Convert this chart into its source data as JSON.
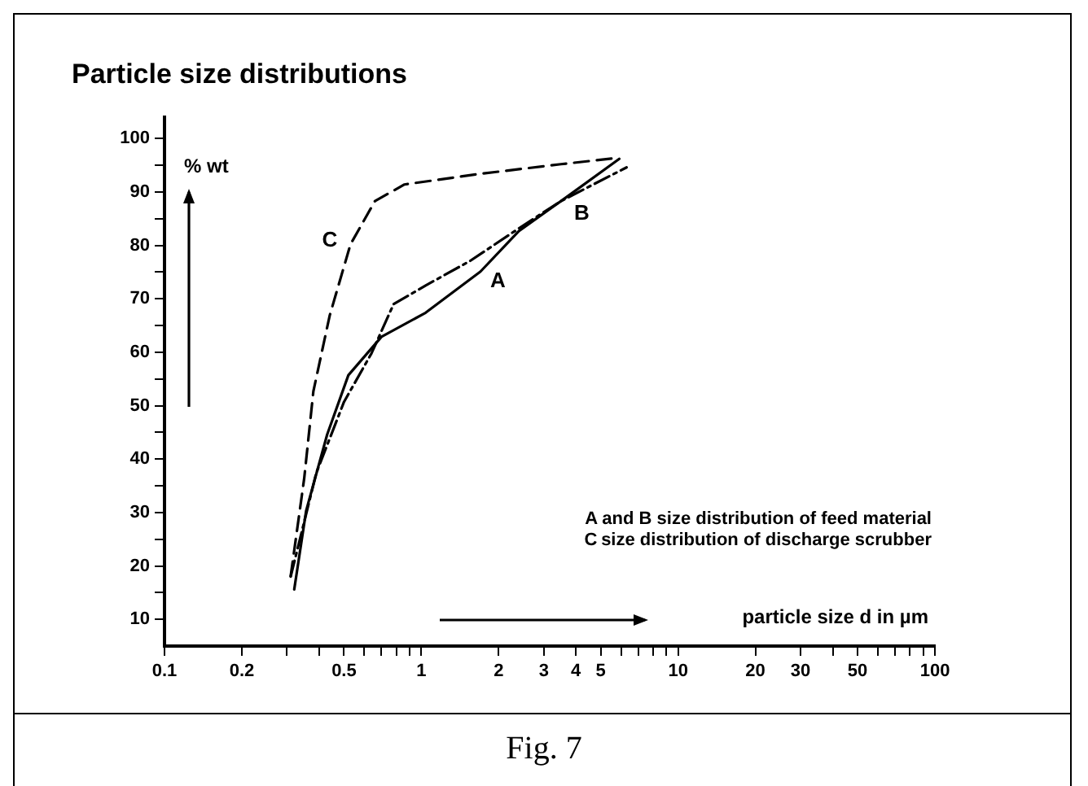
{
  "chart_data": {
    "type": "line",
    "title": "Particle size distributions",
    "xlabel": "particle size d in µm",
    "ylabel": "% wt",
    "log": "x",
    "xlim": [
      0.1,
      100
    ],
    "xticks": [
      0.1,
      0.2,
      {
        "value": 0.3,
        "label": null
      },
      {
        "value": 0.4,
        "label": null
      },
      0.5,
      {
        "value": 0.6,
        "label": null
      },
      {
        "value": 0.7,
        "label": null
      },
      {
        "value": 0.8,
        "label": null
      },
      {
        "value": 0.9,
        "label": null
      },
      1,
      2,
      3,
      4,
      5,
      {
        "value": 6,
        "label": null
      },
      {
        "value": 7,
        "label": null
      },
      {
        "value": 8,
        "label": null
      },
      {
        "value": 9,
        "label": null
      },
      10,
      20,
      30,
      {
        "value": 40,
        "label": null
      },
      50,
      {
        "value": 60,
        "label": null
      },
      {
        "value": 70,
        "label": null
      },
      {
        "value": 80,
        "label": null
      },
      {
        "value": 90,
        "label": null
      },
      100
    ],
    "ylim": [
      5,
      104
    ],
    "yticks": [
      10,
      {
        "value": 15,
        "label": null
      },
      20,
      {
        "value": 25,
        "label": null
      },
      30,
      {
        "value": 35,
        "label": null
      },
      40,
      {
        "value": 45,
        "label": null
      },
      50,
      {
        "value": 55,
        "label": null
      },
      60,
      {
        "value": 65,
        "label": null
      },
      70,
      {
        "value": 75,
        "label": null
      },
      80,
      {
        "value": 85,
        "label": null
      },
      90,
      {
        "value": 95,
        "label": null
      },
      100
    ],
    "grid": false,
    "legend": false,
    "marker": "none",
    "series": [
      {
        "name": "A",
        "color": "#000000",
        "line_style": "solid",
        "x": [
          0.32,
          0.356,
          0.43,
          0.52,
          0.7,
          1.04,
          1.7,
          2.4,
          3.5,
          5.9
        ],
        "values": [
          15.6,
          30.3,
          44.6,
          55.7,
          62.9,
          67.4,
          75.1,
          82.7,
          88.3,
          96.2
        ]
      },
      {
        "name": "B",
        "color": "#000000",
        "line_style": "dashdot",
        "x": [
          0.31,
          0.39,
          0.5,
          0.64,
          0.78,
          1.04,
          1.55,
          2.4,
          3.5,
          6.3
        ],
        "values": [
          18,
          37.4,
          50.7,
          59.8,
          69,
          72.5,
          77.1,
          83.2,
          88.3,
          94.6
        ]
      },
      {
        "name": "C",
        "color": "#000000",
        "line_style": "dashed",
        "x": [
          0.31,
          0.35,
          0.38,
          0.44,
          0.53,
          0.66,
          0.86,
          1.7,
          3.5,
          5.9
        ],
        "values": [
          18.1,
          36.4,
          52.7,
          66.9,
          80.2,
          88.3,
          91.4,
          93.4,
          95.2,
          96.4
        ]
      }
    ],
    "annotations": [
      "A and B size distribution of feed material",
      "C size distribution of discharge scrubber",
      "Fig. 7"
    ]
  }
}
